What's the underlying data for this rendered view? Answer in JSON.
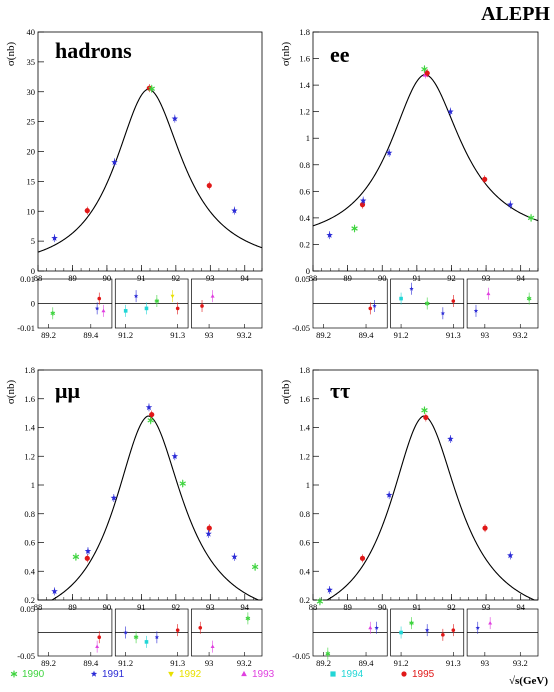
{
  "header": {
    "experiment": "ALEPH"
  },
  "colors": {
    "1990": "#3fd43f",
    "1991": "#2b2bd6",
    "1992": "#e8e000",
    "1993": "#e040e0",
    "1994": "#22d6d6",
    "1995": "#e01818",
    "fit": "#000000"
  },
  "legend": [
    {
      "year": "1990",
      "symbol": "asterisk",
      "icon": "asterisk-icon"
    },
    {
      "year": "1991",
      "symbol": "star",
      "icon": "star-icon"
    },
    {
      "year": "1992",
      "symbol": "triangle-down",
      "icon": "triangle-down-icon"
    },
    {
      "year": "1993",
      "symbol": "triangle-up",
      "icon": "triangle-up-icon"
    },
    {
      "year": "1994",
      "symbol": "square",
      "icon": "square-icon"
    },
    {
      "year": "1995",
      "symbol": "circle",
      "icon": "circle-icon"
    }
  ],
  "x_axis_title": "√s(GeV)",
  "chart_data": [
    {
      "type": "scatter",
      "channel": "hadrons",
      "ylabel": "σ(nb)",
      "xlim": [
        88,
        94.5
      ],
      "ylim": [
        0,
        40
      ],
      "xticks": [
        "88",
        "89",
        "90",
        "91",
        "92",
        "93",
        "94"
      ],
      "yticks": [
        "0",
        "5",
        "10",
        "15",
        "20",
        "25",
        "30",
        "35",
        "40"
      ],
      "fit": {
        "peak": 30.45,
        "mass": 91.19,
        "width": 2.49,
        "base": 0
      },
      "points": [
        {
          "x": 88.48,
          "y": 5.5,
          "year": "1991"
        },
        {
          "x": 89.43,
          "y": 10.1,
          "year": "1995"
        },
        {
          "x": 90.22,
          "y": 18.2,
          "year": "1991"
        },
        {
          "x": 91.23,
          "y": 30.6,
          "year": "1995"
        },
        {
          "x": 91.3,
          "y": 30.5,
          "year": "1990"
        },
        {
          "x": 91.97,
          "y": 25.5,
          "year": "1991"
        },
        {
          "x": 92.97,
          "y": 14.3,
          "year": "1995"
        },
        {
          "x": 93.7,
          "y": 10.1,
          "year": "1991"
        }
      ],
      "residual": {
        "ylim": [
          -0.01,
          0.01
        ],
        "yticks": [
          "0.01",
          "0",
          "-0.01"
        ],
        "panels": [
          {
            "xlim": [
              89.15,
              89.5
            ],
            "xticks": [
              "89.2",
              "89.4"
            ],
            "points": [
              {
                "x": 89.22,
                "y": -0.004,
                "year": "1990"
              },
              {
                "x": 89.43,
                "y": -0.002,
                "year": "1991"
              },
              {
                "x": 89.44,
                "y": 0.002,
                "year": "1995"
              },
              {
                "x": 89.46,
                "y": -0.003,
                "year": "1993"
              }
            ]
          },
          {
            "xlim": [
              91.18,
              91.32
            ],
            "xticks": [
              "91.2",
              "91.3"
            ],
            "points": [
              {
                "x": 91.2,
                "y": -0.003,
                "year": "1994"
              },
              {
                "x": 91.22,
                "y": 0.003,
                "year": "1991"
              },
              {
                "x": 91.24,
                "y": -0.002,
                "year": "1994"
              },
              {
                "x": 91.26,
                "y": 0.001,
                "year": "1990"
              },
              {
                "x": 91.29,
                "y": 0.003,
                "year": "1992"
              },
              {
                "x": 91.3,
                "y": -0.002,
                "year": "1995"
              }
            ]
          },
          {
            "xlim": [
              92.9,
              93.3
            ],
            "xticks": [
              "93",
              "93.2"
            ],
            "points": [
              {
                "x": 92.96,
                "y": -0.001,
                "year": "1995"
              },
              {
                "x": 93.02,
                "y": 0.003,
                "year": "1993"
              }
            ]
          }
        ]
      }
    },
    {
      "type": "scatter",
      "channel": "ee",
      "ylabel": "σ(nb)",
      "xlim": [
        88,
        94.5
      ],
      "ylim": [
        0,
        1.8
      ],
      "xticks": [
        "88",
        "89",
        "90",
        "91",
        "92",
        "93",
        "94"
      ],
      "yticks": [
        "0",
        "0.2",
        "0.4",
        "0.6",
        "0.8",
        "1",
        "1.2",
        "1.4",
        "1.6",
        "1.8"
      ],
      "fit": {
        "peak": 1.28,
        "mass": 91.22,
        "width": 2.6,
        "base": 0.2
      },
      "points": [
        {
          "x": 88.48,
          "y": 0.27,
          "year": "1991"
        },
        {
          "x": 89.2,
          "y": 0.32,
          "year": "1990"
        },
        {
          "x": 89.43,
          "y": 0.5,
          "year": "1995"
        },
        {
          "x": 89.45,
          "y": 0.53,
          "year": "1991"
        },
        {
          "x": 90.2,
          "y": 0.89,
          "year": "1991"
        },
        {
          "x": 91.22,
          "y": 1.52,
          "year": "1990"
        },
        {
          "x": 91.25,
          "y": 1.48,
          "year": "1993"
        },
        {
          "x": 91.3,
          "y": 1.49,
          "year": "1995"
        },
        {
          "x": 91.97,
          "y": 1.2,
          "year": "1991"
        },
        {
          "x": 92.96,
          "y": 0.69,
          "year": "1995"
        },
        {
          "x": 93.7,
          "y": 0.5,
          "year": "1991"
        },
        {
          "x": 94.3,
          "y": 0.4,
          "year": "1990"
        }
      ],
      "residual": {
        "ylim": [
          -0.05,
          0.05
        ],
        "yticks": [
          "0.05",
          "-0.05"
        ],
        "panels": [
          {
            "xlim": [
              89.15,
              89.5
            ],
            "xticks": [
              "89.2",
              "89.4"
            ],
            "points": [
              {
                "x": 89.42,
                "y": -0.01,
                "year": "1995"
              },
              {
                "x": 89.44,
                "y": -0.005,
                "year": "1991"
              }
            ]
          },
          {
            "xlim": [
              91.18,
              91.32
            ],
            "xticks": [
              "91.2",
              "91.3"
            ],
            "points": [
              {
                "x": 91.2,
                "y": 0.01,
                "year": "1994"
              },
              {
                "x": 91.22,
                "y": 0.03,
                "year": "1991"
              },
              {
                "x": 91.25,
                "y": 0.0,
                "year": "1990"
              },
              {
                "x": 91.28,
                "y": -0.02,
                "year": "1991"
              },
              {
                "x": 91.3,
                "y": 0.005,
                "year": "1995"
              }
            ]
          },
          {
            "xlim": [
              92.9,
              93.3
            ],
            "xticks": [
              "93",
              "93.2"
            ],
            "points": [
              {
                "x": 92.95,
                "y": -0.015,
                "year": "1991"
              },
              {
                "x": 93.02,
                "y": 0.02,
                "year": "1993"
              },
              {
                "x": 93.25,
                "y": 0.01,
                "year": "1990"
              }
            ]
          }
        ]
      }
    },
    {
      "type": "scatter",
      "channel": "μμ",
      "ylabel": "σ(nb)",
      "xlim": [
        88,
        94.5
      ],
      "ylim": [
        0.2,
        1.8
      ],
      "xticks": [
        "88",
        "89",
        "90",
        "91",
        "92",
        "93",
        "94"
      ],
      "yticks": [
        "0.2",
        "0.4",
        "0.6",
        "0.8",
        "1",
        "1.2",
        "1.4",
        "1.6",
        "1.8"
      ],
      "fit": {
        "peak": 1.48,
        "mass": 91.19,
        "width": 2.49,
        "base": 0
      },
      "points": [
        {
          "x": 88.48,
          "y": 0.26,
          "year": "1991"
        },
        {
          "x": 89.1,
          "y": 0.5,
          "year": "1990"
        },
        {
          "x": 89.43,
          "y": 0.49,
          "year": "1995"
        },
        {
          "x": 89.45,
          "y": 0.54,
          "year": "1991"
        },
        {
          "x": 90.2,
          "y": 0.91,
          "year": "1991"
        },
        {
          "x": 91.22,
          "y": 1.54,
          "year": "1991"
        },
        {
          "x": 91.27,
          "y": 1.45,
          "year": "1990"
        },
        {
          "x": 91.3,
          "y": 1.49,
          "year": "1995"
        },
        {
          "x": 91.97,
          "y": 1.2,
          "year": "1991"
        },
        {
          "x": 92.2,
          "y": 1.01,
          "year": "1990"
        },
        {
          "x": 92.97,
          "y": 0.7,
          "year": "1995"
        },
        {
          "x": 92.95,
          "y": 0.66,
          "year": "1991"
        },
        {
          "x": 93.7,
          "y": 0.5,
          "year": "1991"
        },
        {
          "x": 94.3,
          "y": 0.43,
          "year": "1990"
        }
      ],
      "residual": {
        "ylim": [
          -0.05,
          0.05
        ],
        "yticks": [
          "0.05",
          "-0.05"
        ],
        "panels": [
          {
            "xlim": [
              89.15,
              89.5
            ],
            "xticks": [
              "89.2",
              "89.4"
            ],
            "points": [
              {
                "x": 89.43,
                "y": -0.03,
                "year": "1993"
              },
              {
                "x": 89.44,
                "y": -0.01,
                "year": "1995"
              }
            ]
          },
          {
            "xlim": [
              91.18,
              91.32
            ],
            "xticks": [
              "91.2",
              "91.3"
            ],
            "points": [
              {
                "x": 91.2,
                "y": 0.0,
                "year": "1991"
              },
              {
                "x": 91.22,
                "y": -0.01,
                "year": "1990"
              },
              {
                "x": 91.24,
                "y": -0.02,
                "year": "1994"
              },
              {
                "x": 91.26,
                "y": -0.01,
                "year": "1991"
              },
              {
                "x": 91.3,
                "y": 0.005,
                "year": "1995"
              }
            ]
          },
          {
            "xlim": [
              92.9,
              93.3
            ],
            "xticks": [
              "93",
              "93.2"
            ],
            "points": [
              {
                "x": 92.95,
                "y": 0.01,
                "year": "1995"
              },
              {
                "x": 93.02,
                "y": -0.03,
                "year": "1993"
              },
              {
                "x": 93.22,
                "y": 0.03,
                "year": "1990"
              }
            ]
          }
        ]
      }
    },
    {
      "type": "scatter",
      "channel": "ττ",
      "ylabel": "σ(nb)",
      "xlim": [
        88,
        94.5
      ],
      "ylim": [
        0.2,
        1.8
      ],
      "xticks": [
        "88",
        "89",
        "90",
        "91",
        "92",
        "93",
        "94"
      ],
      "yticks": [
        "0.2",
        "0.4",
        "0.6",
        "0.8",
        "1",
        "1.2",
        "1.4",
        "1.6",
        "1.8"
      ],
      "fit": {
        "peak": 1.48,
        "mass": 91.19,
        "width": 2.49,
        "base": 0
      },
      "points": [
        {
          "x": 88.2,
          "y": 0.19,
          "year": "1990"
        },
        {
          "x": 88.48,
          "y": 0.27,
          "year": "1991"
        },
        {
          "x": 89.43,
          "y": 0.49,
          "year": "1995"
        },
        {
          "x": 90.2,
          "y": 0.93,
          "year": "1991"
        },
        {
          "x": 91.22,
          "y": 1.52,
          "year": "1990"
        },
        {
          "x": 91.26,
          "y": 1.47,
          "year": "1995"
        },
        {
          "x": 91.97,
          "y": 1.32,
          "year": "1991"
        },
        {
          "x": 92.97,
          "y": 0.7,
          "year": "1995"
        },
        {
          "x": 93.7,
          "y": 0.51,
          "year": "1991"
        }
      ],
      "residual": {
        "ylim": [
          -0.05,
          0.05
        ],
        "yticks": [
          "-0.05"
        ],
        "panels": [
          {
            "xlim": [
              89.15,
              89.5
            ],
            "xticks": [
              "89.2",
              "89.4"
            ],
            "points": [
              {
                "x": 89.22,
                "y": -0.045,
                "year": "1990"
              },
              {
                "x": 89.42,
                "y": 0.01,
                "year": "1993"
              },
              {
                "x": 89.45,
                "y": 0.01,
                "year": "1991"
              }
            ]
          },
          {
            "xlim": [
              91.18,
              91.32
            ],
            "xticks": [
              "91.2",
              "91.3"
            ],
            "points": [
              {
                "x": 91.2,
                "y": 0.0,
                "year": "1994"
              },
              {
                "x": 91.22,
                "y": 0.02,
                "year": "1990"
              },
              {
                "x": 91.25,
                "y": 0.005,
                "year": "1991"
              },
              {
                "x": 91.28,
                "y": -0.005,
                "year": "1995"
              },
              {
                "x": 91.3,
                "y": 0.005,
                "year": "1995"
              }
            ]
          },
          {
            "xlim": [
              92.9,
              93.3
            ],
            "xticks": [
              "93",
              "93.2"
            ],
            "points": [
              {
                "x": 92.96,
                "y": 0.01,
                "year": "1991"
              },
              {
                "x": 93.03,
                "y": 0.02,
                "year": "1993"
              }
            ]
          }
        ]
      }
    }
  ]
}
